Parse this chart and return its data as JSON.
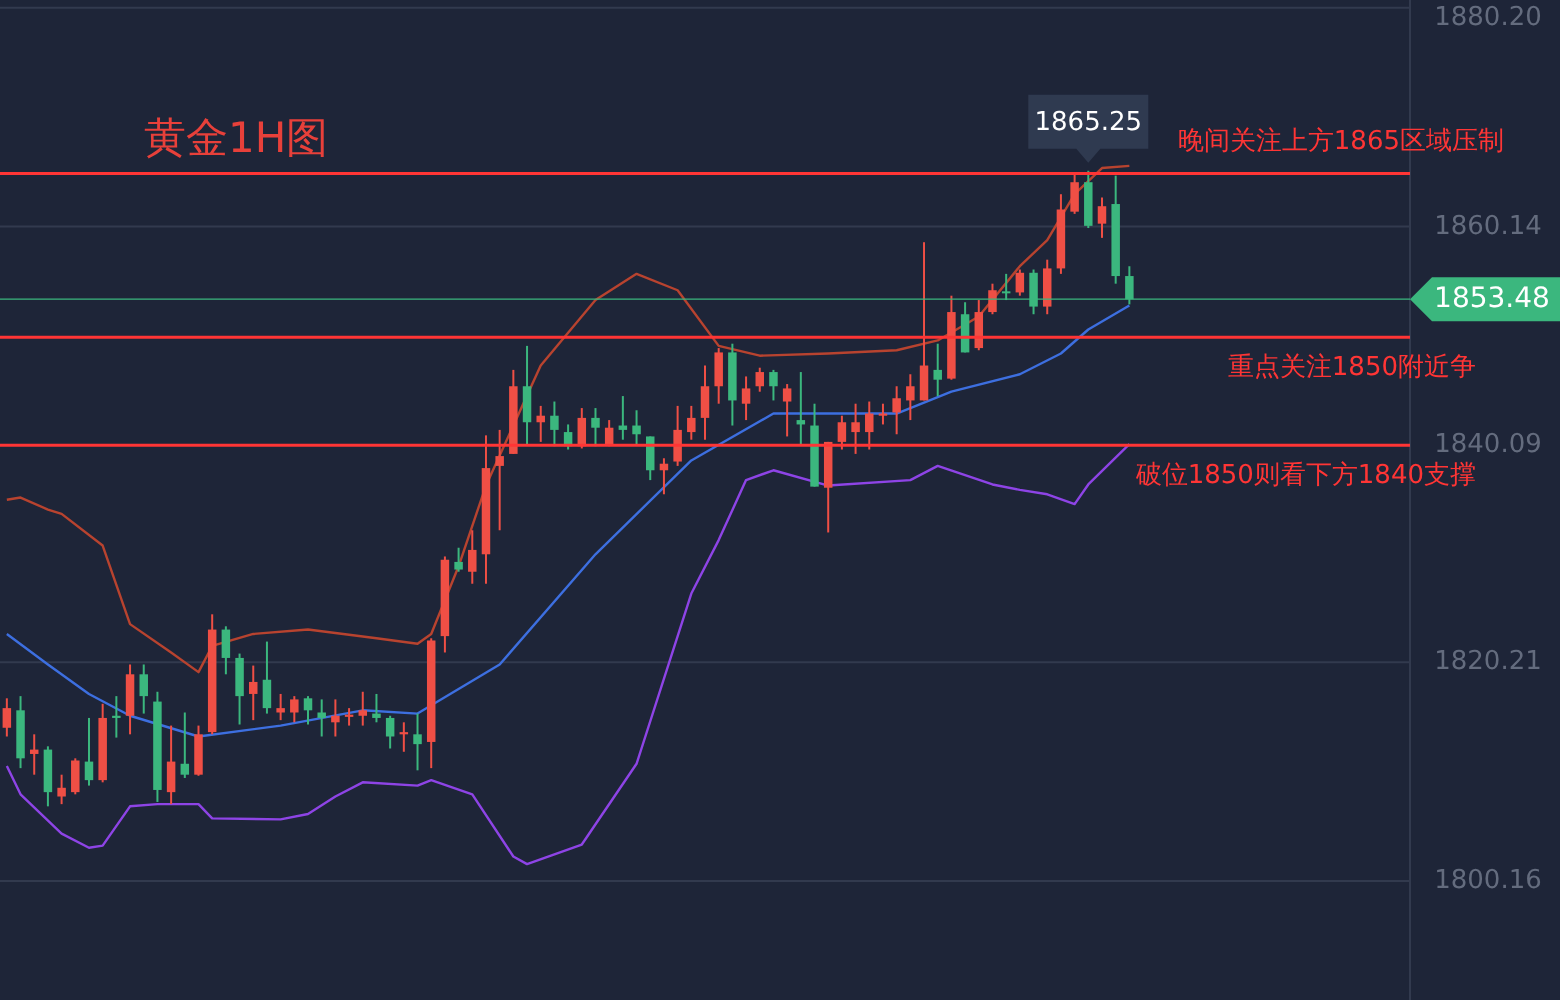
{
  "chart_data": {
    "type": "candlestick",
    "title": "黄金1H图",
    "categories": [
      null,
      null,
      null,
      null,
      null,
      null,
      null,
      null,
      null,
      null,
      null,
      null,
      null,
      null,
      null,
      null,
      null,
      null,
      null,
      null,
      null,
      null,
      null,
      null,
      null,
      null,
      null,
      null,
      null,
      null,
      null,
      null,
      null,
      null,
      null,
      null,
      null,
      null,
      null,
      null,
      null,
      null,
      null,
      null,
      null,
      null,
      null,
      null,
      null,
      null,
      null,
      null,
      null,
      null,
      null,
      null,
      null,
      null,
      null,
      null,
      null,
      null,
      null,
      null,
      null,
      null,
      null,
      null,
      null,
      null,
      null,
      null,
      null,
      null,
      null,
      null,
      null,
      null,
      null,
      null,
      null,
      null,
      null,
      null,
      null,
      null,
      null,
      null,
      null,
      null,
      null,
      null,
      null,
      null,
      null,
      null,
      null,
      null,
      null,
      null,
      null,
      null,
      null
    ],
    "ylim": [
      1789.25,
      1880.9
    ],
    "yticks": [
      {
        "value": 1800.16,
        "label": "1800.16"
      },
      {
        "value": 1820.21,
        "label": "1820.21"
      },
      {
        "value": 1840.09,
        "label": "1840.09"
      },
      {
        "value": 1860.14,
        "label": "1860.14"
      },
      {
        "value": 1880.2,
        "label": "1880.20"
      }
    ],
    "tick_labels": "y",
    "grid": "y",
    "marker": "none",
    "line_style": "solid",
    "series": [
      {
        "type": "candlestick",
        "ohlc": [
          [
            1814.2,
            1816.9,
            1813.4,
            1816.0
          ],
          [
            1815.8,
            1817.1,
            1810.5,
            1811.4
          ],
          [
            1811.8,
            1813.6,
            1809.9,
            1812.2
          ],
          [
            1812.2,
            1812.5,
            1807.0,
            1808.3
          ],
          [
            1807.9,
            1809.9,
            1807.2,
            1808.7
          ],
          [
            1808.3,
            1811.4,
            1808.1,
            1811.2
          ],
          [
            1811.1,
            1815.1,
            1808.9,
            1809.4
          ],
          [
            1809.4,
            1816.4,
            1809.2,
            1815.1
          ],
          [
            1815.3,
            1817.1,
            1813.3,
            1815.1
          ],
          [
            1815.3,
            1820.0,
            1813.6,
            1819.1
          ],
          [
            1819.1,
            1820.0,
            1815.5,
            1817.1
          ],
          [
            1816.6,
            1817.5,
            1807.4,
            1808.5
          ],
          [
            1808.3,
            1814.4,
            1807.2,
            1811.1
          ],
          [
            1810.9,
            1815.6,
            1809.6,
            1809.9
          ],
          [
            1809.9,
            1814.4,
            1809.8,
            1813.6
          ],
          [
            1813.8,
            1824.6,
            1813.6,
            1823.2
          ],
          [
            1823.2,
            1823.5,
            1819.1,
            1820.6
          ],
          [
            1820.6,
            1821.0,
            1814.5,
            1817.1
          ],
          [
            1817.3,
            1819.9,
            1814.9,
            1818.4
          ],
          [
            1818.6,
            1822.1,
            1815.5,
            1816.0
          ],
          [
            1815.6,
            1817.3,
            1814.9,
            1816.0
          ],
          [
            1815.6,
            1817.1,
            1814.7,
            1816.8
          ],
          [
            1816.9,
            1817.1,
            1814.5,
            1815.8
          ],
          [
            1815.6,
            1816.8,
            1813.4,
            1815.1
          ],
          [
            1814.7,
            1816.8,
            1813.4,
            1815.3
          ],
          [
            1815.2,
            1816.0,
            1814.4,
            1815.4
          ],
          [
            1815.3,
            1817.5,
            1814.4,
            1815.8
          ],
          [
            1815.5,
            1817.3,
            1814.7,
            1815.1
          ],
          [
            1815.1,
            1815.3,
            1812.3,
            1813.4
          ],
          [
            1813.6,
            1814.7,
            1812.0,
            1813.8
          ],
          [
            1813.6,
            1815.5,
            1810.3,
            1812.7
          ],
          [
            1812.9,
            1822.4,
            1810.5,
            1822.2
          ],
          [
            1822.6,
            1829.9,
            1821.1,
            1829.6
          ],
          [
            1829.4,
            1830.7,
            1828.5,
            1828.7
          ],
          [
            1828.5,
            1832.3,
            1827.4,
            1830.5
          ],
          [
            1830.1,
            1841.0,
            1827.4,
            1838.0
          ],
          [
            1838.2,
            1841.5,
            1832.3,
            1839.1
          ],
          [
            1839.3,
            1847.0,
            1839.3,
            1845.5
          ],
          [
            1845.5,
            1849.2,
            1840.2,
            1842.2
          ],
          [
            1842.2,
            1843.7,
            1840.4,
            1842.8
          ],
          [
            1842.8,
            1844.1,
            1840.0,
            1841.5
          ],
          [
            1841.3,
            1842.0,
            1839.7,
            1840.0
          ],
          [
            1840.0,
            1843.5,
            1839.8,
            1842.6
          ],
          [
            1842.6,
            1843.5,
            1840.0,
            1841.7
          ],
          [
            1840.2,
            1842.4,
            1840.0,
            1841.7
          ],
          [
            1841.9,
            1844.6,
            1840.6,
            1841.5
          ],
          [
            1841.9,
            1843.3,
            1840.2,
            1841.1
          ],
          [
            1840.9,
            1840.9,
            1836.9,
            1837.8
          ],
          [
            1837.8,
            1838.9,
            1835.6,
            1838.4
          ],
          [
            1838.6,
            1843.7,
            1838.2,
            1841.5
          ],
          [
            1841.3,
            1843.7,
            1840.6,
            1842.6
          ],
          [
            1842.6,
            1847.4,
            1840.6,
            1845.5
          ],
          [
            1845.5,
            1849.0,
            1843.9,
            1848.6
          ],
          [
            1848.6,
            1849.4,
            1841.9,
            1844.2
          ],
          [
            1843.9,
            1846.4,
            1842.4,
            1845.3
          ],
          [
            1845.5,
            1847.2,
            1845.0,
            1846.8
          ],
          [
            1846.8,
            1847.0,
            1844.2,
            1845.5
          ],
          [
            1844.1,
            1845.7,
            1840.9,
            1845.3
          ],
          [
            1842.4,
            1846.8,
            1840.2,
            1842.0
          ],
          [
            1841.9,
            1843.9,
            1836.3,
            1836.3
          ],
          [
            1836.2,
            1840.4,
            1832.1,
            1840.4
          ],
          [
            1840.4,
            1842.8,
            1839.7,
            1842.2
          ],
          [
            1841.3,
            1843.9,
            1839.3,
            1842.2
          ],
          [
            1841.3,
            1844.1,
            1839.7,
            1843.0
          ],
          [
            1842.8,
            1843.9,
            1842.0,
            1843.0
          ],
          [
            1843.1,
            1845.5,
            1841.1,
            1844.4
          ],
          [
            1844.2,
            1846.6,
            1842.4,
            1845.5
          ],
          [
            1844.2,
            1858.7,
            1844.2,
            1847.4
          ],
          [
            1847.0,
            1849.4,
            1844.6,
            1846.1
          ],
          [
            1846.2,
            1853.8,
            1846.1,
            1852.3
          ],
          [
            1852.1,
            1853.2,
            1848.6,
            1848.6
          ],
          [
            1849.0,
            1853.4,
            1848.8,
            1852.3
          ],
          [
            1852.3,
            1854.9,
            1852.1,
            1854.3
          ],
          [
            1854.2,
            1855.8,
            1853.4,
            1854.1
          ],
          [
            1854.1,
            1856.2,
            1853.8,
            1855.9
          ],
          [
            1855.9,
            1856.2,
            1852.1,
            1852.8
          ],
          [
            1852.8,
            1857.1,
            1852.1,
            1856.3
          ],
          [
            1856.3,
            1863.1,
            1855.8,
            1861.7
          ],
          [
            1861.5,
            1865.1,
            1861.3,
            1864.2
          ],
          [
            1864.2,
            1865.25,
            1860.0,
            1860.2
          ],
          [
            1860.4,
            1862.8,
            1859.1,
            1862.0
          ],
          [
            1862.2,
            1864.8,
            1854.9,
            1855.6
          ],
          [
            1855.6,
            1856.5,
            1853.0,
            1853.48
          ],
          null,
          null,
          null,
          null,
          null,
          null,
          null,
          null,
          null,
          null,
          null,
          null,
          null,
          null,
          null,
          null,
          null,
          null,
          null,
          null
        ],
        "colors": [
          "#ef4f45",
          "#3bb77e",
          "#ef4f45",
          "#3bb77e",
          "#ef4f45",
          "#ef4f45",
          "#3bb77e",
          "#ef4f45",
          "#3bb77e",
          "#ef4f45",
          "#3bb77e",
          "#3bb77e",
          "#ef4f45",
          "#3bb77e",
          "#ef4f45",
          "#ef4f45",
          "#3bb77e",
          "#3bb77e",
          "#ef4f45",
          "#3bb77e",
          "#ef4f45",
          "#ef4f45",
          "#3bb77e",
          "#3bb77e",
          "#ef4f45",
          "#ef4f45",
          "#ef4f45",
          "#3bb77e",
          "#3bb77e",
          "#ef4f45",
          "#3bb77e",
          "#ef4f45",
          "#ef4f45",
          "#3bb77e",
          "#ef4f45",
          "#ef4f45",
          "#ef4f45",
          "#ef4f45",
          "#3bb77e",
          "#ef4f45",
          "#3bb77e",
          "#3bb77e",
          "#ef4f45",
          "#3bb77e",
          "#ef4f45",
          "#3bb77e",
          "#3bb77e",
          "#3bb77e",
          "#ef4f45",
          "#ef4f45",
          "#ef4f45",
          "#ef4f45",
          "#ef4f45",
          "#3bb77e",
          "#ef4f45",
          "#ef4f45",
          "#3bb77e",
          "#ef4f45",
          "#3bb77e",
          "#3bb77e",
          "#ef4f45",
          "#ef4f45",
          "#ef4f45",
          "#ef4f45",
          "#ef4f45",
          "#ef4f45",
          "#ef4f45",
          "#ef4f45",
          "#3bb77e",
          "#ef4f45",
          "#3bb77e",
          "#ef4f45",
          "#ef4f45",
          "#3bb77e",
          "#ef4f45",
          "#3bb77e",
          "#ef4f45",
          "#ef4f45",
          "#ef4f45",
          "#3bb77e",
          "#ef4f45",
          "#3bb77e",
          "#3bb77e",
          null,
          null,
          null,
          null,
          null,
          null,
          null,
          null,
          null,
          null,
          null,
          null,
          null,
          null,
          null,
          null,
          null,
          null,
          null,
          null
        ]
      },
      {
        "type": "line",
        "color": "#b8432f",
        "values": [
          1835.1,
          1835.3,
          null,
          1834.2,
          1833.8,
          null,
          null,
          1830.9,
          null,
          1823.7,
          null,
          null,
          1821.1,
          null,
          1819.3,
          1821.7,
          null,
          null,
          1822.8,
          null,
          null,
          null,
          1823.2,
          null,
          null,
          null,
          null,
          1822.4,
          null,
          null,
          1821.9,
          1822.8,
          null,
          1829.0,
          null,
          1836.4,
          null,
          null,
          null,
          1847.4,
          null,
          null,
          null,
          1853.4,
          null,
          null,
          1855.8,
          null,
          null,
          1854.3,
          null,
          null,
          1849.2,
          null,
          null,
          1848.3,
          null,
          null,
          null,
          null,
          1848.5,
          null,
          null,
          null,
          null,
          1848.8,
          null,
          null,
          1849.7,
          null,
          null,
          1851.9,
          null,
          null,
          1856.5,
          null,
          1858.9,
          null,
          1863.1,
          null,
          1865.5,
          null,
          1865.7,
          null,
          null,
          null,
          null,
          null,
          null,
          null,
          null,
          null,
          null,
          null,
          null,
          null,
          null,
          null,
          null,
          null,
          null,
          null,
          null
        ]
      },
      {
        "type": "line",
        "color": "#3d6fe0",
        "values": [
          1822.8,
          null,
          null,
          1820.0,
          null,
          null,
          1817.3,
          null,
          null,
          1815.3,
          null,
          null,
          null,
          null,
          1813.4,
          null,
          null,
          null,
          null,
          null,
          1814.4,
          null,
          null,
          null,
          null,
          null,
          1815.8,
          null,
          null,
          null,
          1815.5,
          null,
          null,
          null,
          null,
          null,
          1820.0,
          null,
          null,
          null,
          null,
          null,
          null,
          1830.1,
          null,
          null,
          null,
          null,
          null,
          null,
          1838.7,
          null,
          null,
          null,
          null,
          null,
          1843.0,
          null,
          null,
          null,
          1843.0,
          null,
          null,
          null,
          null,
          1843.0,
          null,
          null,
          null,
          1845.0,
          null,
          null,
          null,
          null,
          1846.6,
          null,
          null,
          1848.5,
          null,
          1850.7,
          null,
          null,
          1852.9,
          null,
          null,
          null,
          null,
          null,
          null,
          null,
          null,
          null,
          null,
          null,
          null,
          null,
          null,
          null,
          null,
          null,
          null,
          null,
          null
        ]
      },
      {
        "type": "line",
        "color": "#8e44e6",
        "values": [
          1810.7,
          1808.1,
          null,
          null,
          1804.5,
          null,
          1803.2,
          1803.4,
          null,
          1807.0,
          null,
          1807.2,
          null,
          null,
          1807.2,
          1805.9,
          null,
          null,
          null,
          null,
          1805.8,
          null,
          1806.3,
          null,
          1807.9,
          null,
          1809.2,
          null,
          null,
          null,
          1808.9,
          1809.4,
          null,
          null,
          1808.1,
          null,
          null,
          1802.4,
          1801.7,
          null,
          null,
          null,
          1803.5,
          null,
          null,
          null,
          1810.9,
          null,
          null,
          null,
          1826.5,
          null,
          1831.4,
          null,
          1836.9,
          null,
          1837.8,
          null,
          null,
          null,
          1836.4,
          null,
          null,
          null,
          null,
          null,
          1836.9,
          null,
          1838.2,
          null,
          null,
          null,
          1836.5,
          null,
          1836.0,
          null,
          1835.6,
          null,
          1834.7,
          1836.5,
          null,
          null,
          1840.2,
          null,
          null,
          null,
          null,
          null,
          null,
          null,
          null,
          null,
          null,
          null,
          null,
          null,
          null,
          null,
          null,
          null,
          null,
          null,
          null
        ]
      }
    ],
    "ref_lines": [
      {
        "axis": "y",
        "value": 1865,
        "label": "晚间关注上方1865区域压制",
        "color": "#ff3535"
      },
      {
        "axis": "y",
        "value": 1850,
        "label": "重点关注1850附近争",
        "color": "#ff3535"
      },
      {
        "axis": "y",
        "value": 1840.1,
        "label": "破位1850则看下方1840支撑",
        "color": "#ff3535"
      },
      {
        "axis": "y",
        "value": 1853.48,
        "label": "1853.48",
        "color": "#3bb77e"
      }
    ],
    "annotations": [
      {
        "text": "1865.25",
        "y": 1865.25
      }
    ]
  }
}
